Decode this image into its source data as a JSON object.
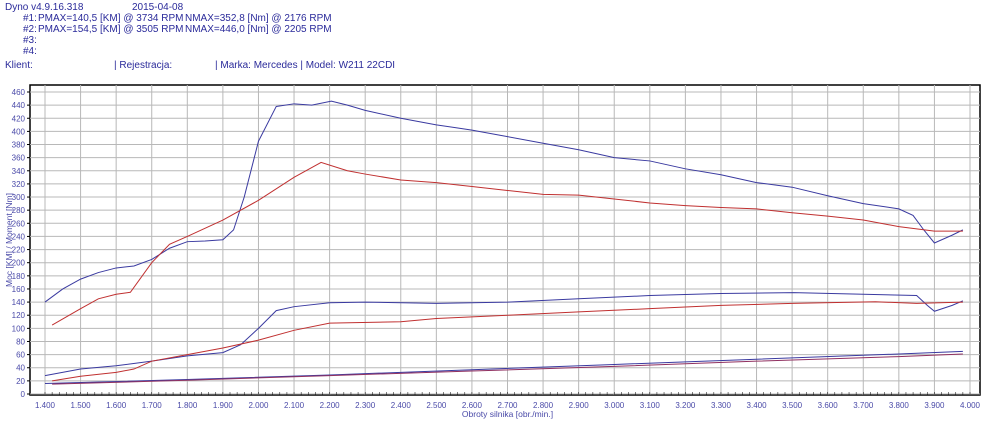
{
  "header": {
    "app": "Dyno v4.9.16.318",
    "date": "2015-04-08",
    "runs": [
      {
        "id": "#1:",
        "pmax": "PMAX=140,5 [KM] @ 3734 RPM",
        "nmax": "NMAX=352,8 [Nm] @ 2176 RPM"
      },
      {
        "id": "#2:",
        "pmax": "PMAX=154,5 [KM] @ 3505 RPM",
        "nmax": "NMAX=446,0 [Nm] @ 2205 RPM"
      },
      {
        "id": "#3:",
        "pmax": "",
        "nmax": ""
      },
      {
        "id": "#4:",
        "pmax": "",
        "nmax": ""
      }
    ],
    "client": "Klient:",
    "registration": "| Rejestracja:",
    "make_model": "| Marka: Mercedes | Model: W211 22CDI"
  },
  "chart_data": {
    "type": "line",
    "xlabel": "Obroty silnika [obr./min.]",
    "ylabel": "Moc [KM] / Moment [Nm]",
    "xlim": [
      1400,
      4000
    ],
    "ylim": [
      0,
      460
    ],
    "grid": true,
    "xticks": [
      1400,
      1500,
      1600,
      1700,
      1800,
      1900,
      2000,
      2100,
      2200,
      2300,
      2400,
      2500,
      2600,
      2700,
      2800,
      2900,
      3000,
      3100,
      3200,
      3300,
      3400,
      3500,
      3600,
      3700,
      3800,
      3900,
      4000
    ],
    "xtick_labels": [
      "1.400",
      "1.500",
      "1.600",
      "1.700",
      "1.800",
      "1.900",
      "2.000",
      "2.100",
      "2.200",
      "2.300",
      "2.400",
      "2.500",
      "2.600",
      "2.700",
      "2.800",
      "2.900",
      "3.000",
      "3.100",
      "3.200",
      "3.300",
      "3.400",
      "3.500",
      "3.600",
      "3.700",
      "3.800",
      "3.900",
      "4.000"
    ],
    "yticks": [
      0,
      20,
      40,
      60,
      80,
      100,
      120,
      140,
      160,
      180,
      200,
      220,
      240,
      260,
      280,
      300,
      320,
      340,
      360,
      380,
      400,
      420,
      440,
      460
    ],
    "series": [
      {
        "run": "#2",
        "kind": "torque",
        "color": "#3a3aa0",
        "points": [
          [
            1400,
            140
          ],
          [
            1450,
            160
          ],
          [
            1500,
            175
          ],
          [
            1550,
            185
          ],
          [
            1600,
            192
          ],
          [
            1650,
            195
          ],
          [
            1700,
            205
          ],
          [
            1750,
            222
          ],
          [
            1800,
            232
          ],
          [
            1850,
            233
          ],
          [
            1900,
            235
          ],
          [
            1930,
            250
          ],
          [
            1960,
            300
          ],
          [
            2000,
            385
          ],
          [
            2050,
            438
          ],
          [
            2100,
            442
          ],
          [
            2150,
            440
          ],
          [
            2205,
            446
          ],
          [
            2250,
            440
          ],
          [
            2300,
            432
          ],
          [
            2400,
            420
          ],
          [
            2500,
            410
          ],
          [
            2600,
            402
          ],
          [
            2700,
            392
          ],
          [
            2800,
            382
          ],
          [
            2900,
            372
          ],
          [
            3000,
            360
          ],
          [
            3100,
            355
          ],
          [
            3200,
            343
          ],
          [
            3300,
            334
          ],
          [
            3400,
            322
          ],
          [
            3500,
            315
          ],
          [
            3600,
            302
          ],
          [
            3700,
            290
          ],
          [
            3800,
            282
          ],
          [
            3840,
            272
          ],
          [
            3870,
            250
          ],
          [
            3900,
            230
          ],
          [
            3950,
            242
          ],
          [
            3980,
            250
          ]
        ]
      },
      {
        "run": "#1",
        "kind": "torque",
        "color": "#c03030",
        "points": [
          [
            1420,
            105
          ],
          [
            1500,
            130
          ],
          [
            1550,
            145
          ],
          [
            1600,
            152
          ],
          [
            1640,
            155
          ],
          [
            1700,
            200
          ],
          [
            1750,
            228
          ],
          [
            1800,
            240
          ],
          [
            1900,
            265
          ],
          [
            2000,
            295
          ],
          [
            2100,
            330
          ],
          [
            2176,
            352.8
          ],
          [
            2250,
            340
          ],
          [
            2300,
            335
          ],
          [
            2400,
            326
          ],
          [
            2500,
            322
          ],
          [
            2600,
            316
          ],
          [
            2700,
            310
          ],
          [
            2800,
            304
          ],
          [
            2900,
            303
          ],
          [
            3000,
            297
          ],
          [
            3100,
            291
          ],
          [
            3200,
            287
          ],
          [
            3300,
            284
          ],
          [
            3400,
            282
          ],
          [
            3500,
            276
          ],
          [
            3600,
            271
          ],
          [
            3700,
            265
          ],
          [
            3800,
            255
          ],
          [
            3900,
            248
          ],
          [
            3980,
            248
          ]
        ]
      },
      {
        "run": "#2",
        "kind": "power",
        "color": "#3a3aa0",
        "points": [
          [
            1400,
            28
          ],
          [
            1500,
            38
          ],
          [
            1600,
            43
          ],
          [
            1700,
            50
          ],
          [
            1800,
            58
          ],
          [
            1900,
            63
          ],
          [
            1950,
            75
          ],
          [
            2000,
            100
          ],
          [
            2050,
            127
          ],
          [
            2100,
            133
          ],
          [
            2200,
            139
          ],
          [
            2300,
            140
          ],
          [
            2500,
            138
          ],
          [
            2700,
            140
          ],
          [
            2900,
            145
          ],
          [
            3100,
            150
          ],
          [
            3300,
            153
          ],
          [
            3505,
            154.5
          ],
          [
            3700,
            152
          ],
          [
            3850,
            150
          ],
          [
            3880,
            135
          ],
          [
            3900,
            126
          ],
          [
            3950,
            135
          ],
          [
            3980,
            142
          ]
        ]
      },
      {
        "run": "#1",
        "kind": "power",
        "color": "#c03030",
        "points": [
          [
            1420,
            20
          ],
          [
            1500,
            27
          ],
          [
            1600,
            33
          ],
          [
            1650,
            38
          ],
          [
            1700,
            50
          ],
          [
            1800,
            60
          ],
          [
            1900,
            70
          ],
          [
            2000,
            82
          ],
          [
            2100,
            97
          ],
          [
            2200,
            108
          ],
          [
            2400,
            110
          ],
          [
            2500,
            115
          ],
          [
            2700,
            120
          ],
          [
            2900,
            125
          ],
          [
            3100,
            130
          ],
          [
            3300,
            135
          ],
          [
            3500,
            138
          ],
          [
            3734,
            140.5
          ],
          [
            3850,
            138
          ],
          [
            3980,
            140
          ]
        ]
      },
      {
        "run": "#2",
        "kind": "loss",
        "color": "#3a3aa0",
        "points": [
          [
            1400,
            16
          ],
          [
            1800,
            22
          ],
          [
            2200,
            29
          ],
          [
            2600,
            37
          ],
          [
            3000,
            45
          ],
          [
            3400,
            53
          ],
          [
            3800,
            61
          ],
          [
            3980,
            65
          ]
        ]
      },
      {
        "run": "#1",
        "kind": "loss",
        "color": "#903060",
        "points": [
          [
            1420,
            15
          ],
          [
            1800,
            21
          ],
          [
            2200,
            28
          ],
          [
            2600,
            35
          ],
          [
            3000,
            42
          ],
          [
            3400,
            50
          ],
          [
            3800,
            57
          ],
          [
            3980,
            61
          ]
        ]
      }
    ]
  }
}
